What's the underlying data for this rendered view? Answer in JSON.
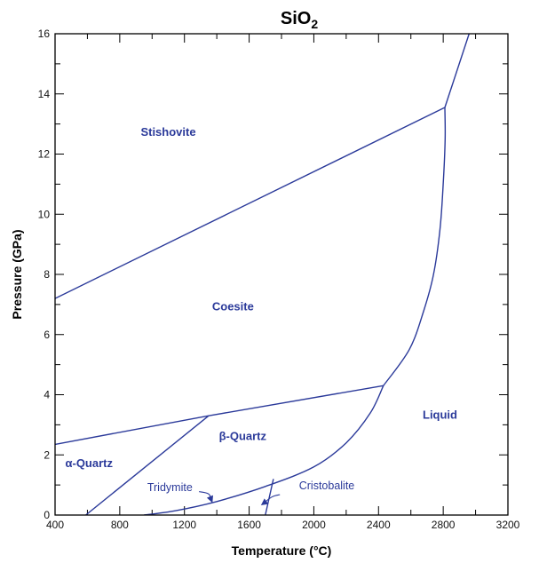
{
  "chart_data": {
    "type": "phase-diagram",
    "title": "SiO",
    "title_subscript": "2",
    "xlabel": "Temperature (°C)",
    "ylabel": "Pressure (GPa)",
    "xlim": [
      400,
      3200
    ],
    "ylim": [
      0,
      16
    ],
    "x_ticks": [
      400,
      800,
      1200,
      1600,
      2000,
      2400,
      2800,
      3200
    ],
    "y_ticks": [
      0,
      2,
      4,
      6,
      8,
      10,
      12,
      14,
      16
    ],
    "x_minor_step": 200,
    "y_minor_step": 1,
    "line_color": "#2b3a9a",
    "label_color": "#2b3a9a",
    "boundaries": [
      {
        "id": "stishovite-coesite",
        "points": [
          [
            400,
            7.2
          ],
          [
            2810,
            13.55
          ]
        ]
      },
      {
        "id": "stishovite-liquid",
        "points": [
          [
            2810,
            13.55
          ],
          [
            2960,
            16
          ]
        ]
      },
      {
        "id": "coesite-liquid",
        "points": [
          [
            2810,
            13.55
          ],
          [
            2812,
            12.5
          ],
          [
            2800,
            11.0
          ],
          [
            2780,
            9.5
          ],
          [
            2740,
            8.0
          ],
          [
            2680,
            6.8
          ],
          [
            2590,
            5.5
          ],
          [
            2430,
            4.3
          ]
        ]
      },
      {
        "id": "alpha-coesite",
        "points": [
          [
            400,
            2.35
          ],
          [
            1350,
            3.3
          ]
        ]
      },
      {
        "id": "beta-coesite",
        "points": [
          [
            1350,
            3.3
          ],
          [
            2430,
            4.3
          ]
        ]
      },
      {
        "id": "alpha-beta-quartz",
        "points": [
          [
            590,
            0
          ],
          [
            1350,
            3.3
          ]
        ]
      },
      {
        "id": "beta-quartz-liquid",
        "points": [
          [
            2430,
            4.3
          ],
          [
            2350,
            3.4
          ],
          [
            2200,
            2.4
          ],
          [
            2000,
            1.6
          ],
          [
            1700,
            0.95
          ],
          [
            1400,
            0.45
          ],
          [
            1150,
            0.15
          ],
          [
            950,
            0
          ]
        ]
      },
      {
        "id": "cristobalite-liquid",
        "points": [
          [
            1700,
            0
          ],
          [
            1750,
            1.2
          ]
        ]
      }
    ],
    "regions": [
      {
        "label": "Stishovite",
        "x": 1100,
        "y": 12.6
      },
      {
        "label": "Coesite",
        "x": 1500,
        "y": 6.8
      },
      {
        "label": "β-Quartz",
        "x": 1560,
        "y": 2.5
      },
      {
        "label": "α-Quartz",
        "x": 610,
        "y": 1.6
      },
      {
        "label": "Liquid",
        "x": 2780,
        "y": 3.2
      }
    ],
    "annotations": [
      {
        "label": "Tridymite",
        "x": 1110,
        "y": 0.8,
        "arrow_path": [
          [
            1290,
            0.78
          ],
          [
            1350,
            0.7
          ],
          [
            1370,
            0.45
          ]
        ]
      },
      {
        "label": "Cristobalite",
        "x": 2080,
        "y": 0.85,
        "arrow_path": [
          [
            1790,
            0.68
          ],
          [
            1740,
            0.6
          ],
          [
            1680,
            0.35
          ]
        ]
      }
    ]
  }
}
